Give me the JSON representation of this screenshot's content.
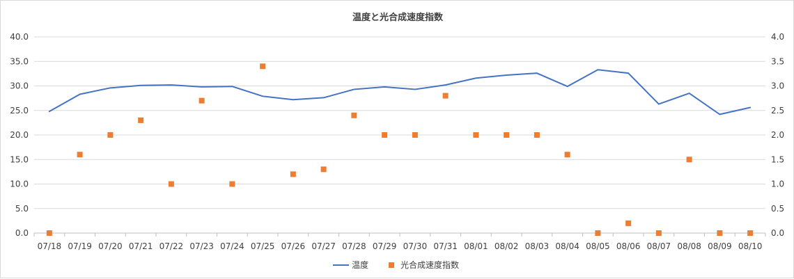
{
  "chart_data": {
    "type": "line",
    "title": "温度と光合成速度指数",
    "categories": [
      "07/18",
      "07/19",
      "07/20",
      "07/21",
      "07/22",
      "07/23",
      "07/24",
      "07/25",
      "07/26",
      "07/27",
      "07/28",
      "07/29",
      "07/30",
      "07/31",
      "08/01",
      "08/02",
      "08/03",
      "08/04",
      "08/05",
      "08/06",
      "08/07",
      "08/08",
      "08/09",
      "08/10"
    ],
    "y_left": {
      "ylim": [
        0,
        40
      ],
      "ticks": [
        "0.0",
        "5.0",
        "10.0",
        "15.0",
        "20.0",
        "25.0",
        "30.0",
        "35.0",
        "40.0"
      ]
    },
    "y_right": {
      "ylim": [
        0,
        4
      ],
      "ticks": [
        "0.0",
        "0.5",
        "1.0",
        "1.5",
        "2.0",
        "2.5",
        "3.0",
        "3.5",
        "4.0"
      ]
    },
    "series": [
      {
        "name": "温度",
        "kind": "line",
        "axis": "left",
        "color": "#4472c4",
        "values": [
          24.8,
          28.3,
          29.6,
          30.1,
          30.2,
          29.8,
          29.9,
          27.9,
          27.2,
          27.6,
          29.3,
          29.8,
          29.3,
          30.2,
          31.6,
          32.2,
          32.6,
          29.9,
          33.3,
          32.6,
          26.3,
          28.5,
          24.2,
          25.6
        ]
      },
      {
        "name": "光合成速度指数",
        "kind": "scatter",
        "axis": "right",
        "color": "#ed7d31",
        "values": [
          0.0,
          1.6,
          2.0,
          2.3,
          1.0,
          2.7,
          1.0,
          3.4,
          1.2,
          1.3,
          2.4,
          2.0,
          2.0,
          2.8,
          2.0,
          2.0,
          2.0,
          1.6,
          0.0,
          0.2,
          0.0,
          1.5,
          0.0,
          0.0
        ]
      }
    ],
    "grid": true,
    "legend_position": "bottom"
  }
}
